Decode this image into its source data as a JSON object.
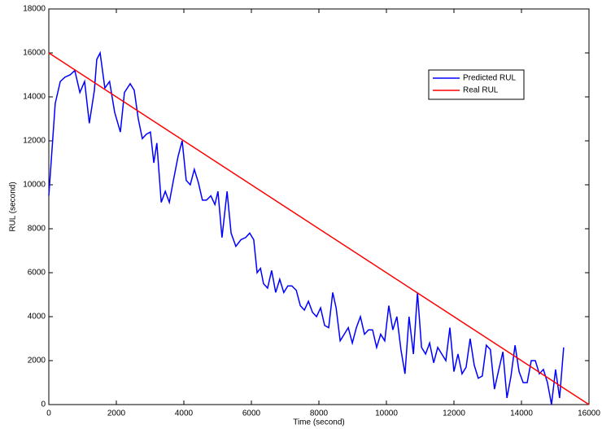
{
  "chart_data": {
    "type": "line",
    "xlabel": "Time (second)",
    "ylabel": "RUL (second)",
    "xlim": [
      0,
      16000
    ],
    "ylim": [
      0,
      18000
    ],
    "xticks": [
      0,
      2000,
      4000,
      6000,
      8000,
      10000,
      12000,
      14000,
      16000
    ],
    "yticks": [
      0,
      2000,
      4000,
      6000,
      8000,
      10000,
      12000,
      14000,
      16000,
      18000
    ],
    "grid": false,
    "legend": "upper right",
    "series": [
      {
        "name": "Predicted RUL",
        "color": "#0000ff",
        "x": [
          0,
          190,
          340,
          480,
          630,
          770,
          920,
          1060,
          1200,
          1350,
          1420,
          1520,
          1660,
          1800,
          1950,
          2120,
          2240,
          2410,
          2530,
          2650,
          2770,
          2890,
          3010,
          3110,
          3200,
          3330,
          3450,
          3570,
          3690,
          3830,
          3950,
          4070,
          4190,
          4310,
          4430,
          4550,
          4670,
          4800,
          4920,
          5010,
          5130,
          5280,
          5400,
          5540,
          5690,
          5830,
          5950,
          6070,
          6170,
          6270,
          6360,
          6480,
          6600,
          6720,
          6840,
          6960,
          7080,
          7200,
          7330,
          7450,
          7570,
          7690,
          7810,
          7930,
          8050,
          8170,
          8290,
          8410,
          8510,
          8630,
          8750,
          8870,
          8990,
          9110,
          9230,
          9350,
          9470,
          9590,
          9710,
          9830,
          9950,
          10070,
          10190,
          10310,
          10430,
          10550,
          10670,
          10800,
          10920,
          11040,
          11160,
          11280,
          11400,
          11520,
          11640,
          11760,
          11880,
          12000,
          12120,
          12240,
          12360,
          12480,
          12600,
          12720,
          12840,
          12960,
          13080,
          13200,
          13330,
          13450,
          13570,
          13690,
          13810,
          13930,
          14050,
          14170,
          14290,
          14410,
          14530,
          14650,
          14770,
          14890,
          15010,
          15130,
          15250
        ],
        "values": [
          9500,
          13700,
          14700,
          14900,
          15000,
          15200,
          14200,
          14700,
          12800,
          14300,
          15700,
          16000,
          14400,
          14700,
          13300,
          12400,
          14200,
          14600,
          14300,
          13000,
          12100,
          12300,
          12400,
          11000,
          11900,
          9200,
          9700,
          9200,
          10200,
          11300,
          12000,
          10200,
          10000,
          10700,
          10100,
          9300,
          9300,
          9500,
          9100,
          9700,
          7600,
          9700,
          7800,
          7200,
          7500,
          7600,
          7800,
          7500,
          6000,
          6200,
          5500,
          5300,
          6100,
          5100,
          5700,
          5100,
          5400,
          5400,
          5200,
          4500,
          4300,
          4700,
          4200,
          4000,
          4400,
          3600,
          3500,
          5100,
          4400,
          2900,
          3200,
          3500,
          2800,
          3500,
          4000,
          3200,
          3400,
          3400,
          2600,
          3200,
          2900,
          4500,
          3400,
          4000,
          2500,
          1400,
          4000,
          2300,
          5100,
          2600,
          2300,
          2800,
          1900,
          2600,
          2300,
          2000,
          3500,
          1500,
          2300,
          1400,
          1700,
          3000,
          1800,
          1200,
          1300,
          2700,
          2500,
          700,
          1600,
          2400,
          300,
          1300,
          2700,
          1500,
          1000,
          1000,
          2000,
          2000,
          1400,
          1600,
          1000,
          0,
          1600,
          300,
          2600
        ]
      },
      {
        "name": "Real RUL",
        "color": "#ff0000",
        "x": [
          0,
          16000
        ],
        "values": [
          16000,
          0
        ]
      }
    ]
  }
}
